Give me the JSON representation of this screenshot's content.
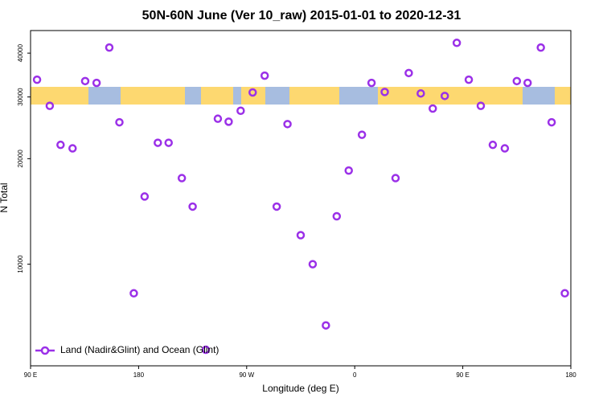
{
  "chart_data": {
    "type": "scatter",
    "title": "50N-60N June (Ver 10_raw)   2015-01-01 to 2020-12-31",
    "x_label": "Longitude (deg E)",
    "y_label": "N Total",
    "xlim": [
      90,
      540
    ],
    "ylim": [
      5130,
      46400
    ],
    "ylog": true,
    "grid": false,
    "legend": "lower left",
    "xticks": [
      {
        "value": 90,
        "label": "90 E"
      },
      180,
      {
        "value": 270,
        "label": "90 W"
      },
      {
        "value": 360,
        "label": "0"
      },
      {
        "value": 450,
        "label": "90 E"
      },
      {
        "value": 540,
        "label": "180"
      }
    ],
    "yticks": [
      10000,
      20000,
      30000,
      40000
    ],
    "series": [
      {
        "name": "Land (Nadir&Glint) and Ocean (Glint)",
        "color": "#9b30e8",
        "x": [
          95.4,
          106,
          115,
          125,
          135.5,
          145,
          155.6,
          164,
          176,
          185,
          196,
          205,
          216,
          225,
          236,
          246,
          255,
          265,
          275,
          285,
          295,
          304,
          315,
          325,
          336,
          345,
          355,
          366,
          374,
          385,
          394,
          405,
          415,
          425,
          435,
          445,
          455,
          465,
          475,
          485,
          495,
          504,
          515,
          524,
          535
        ],
        "values": [
          33600,
          28300,
          21900,
          21400,
          33300,
          32900,
          41500,
          25400,
          8260,
          15600,
          22200,
          22200,
          17600,
          14600,
          5700,
          26000,
          25500,
          27400,
          30900,
          34500,
          14600,
          25100,
          12100,
          10000,
          6690,
          13700,
          18500,
          23400,
          32900,
          31000,
          17600,
          35100,
          30700,
          27800,
          30200,
          42800,
          33600,
          28300,
          21900,
          21400,
          33300,
          32900,
          41500,
          25400,
          8260
        ]
      }
    ]
  }
}
